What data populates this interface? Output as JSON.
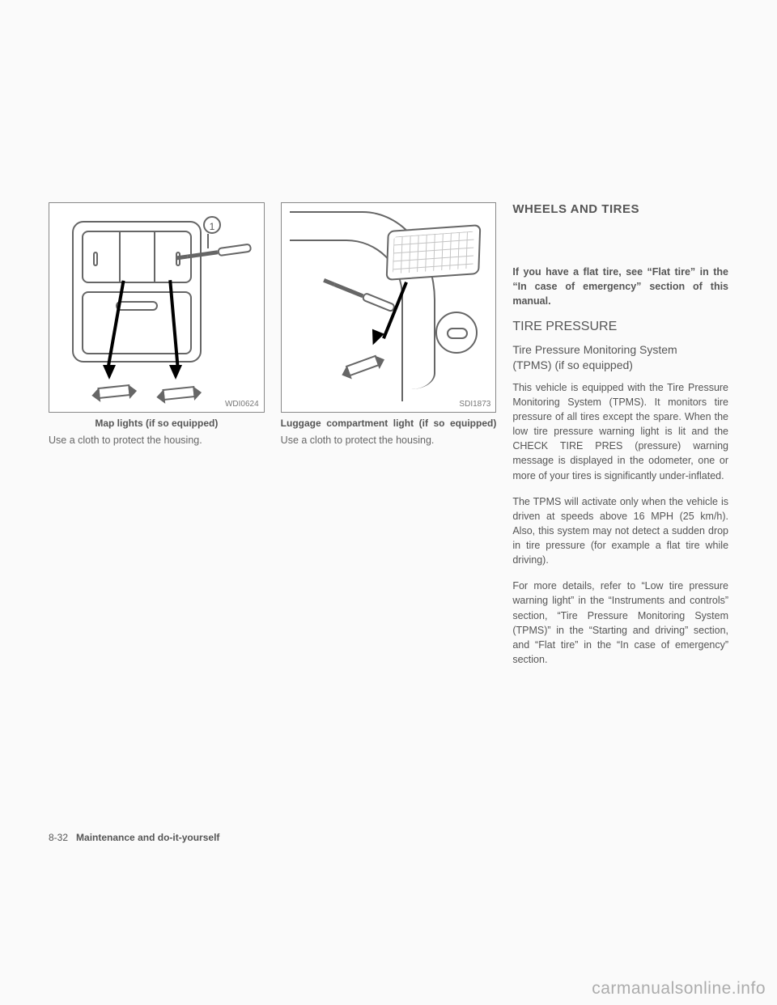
{
  "page": {
    "number": "8-32",
    "section": "Maintenance and do-it-yourself"
  },
  "watermark": "carmanualsonline.info",
  "col1": {
    "figure_id": "WDI0624",
    "caption": "Map lights (if so equipped)",
    "desc": "Use a cloth to protect the housing.",
    "callout": "1"
  },
  "col2": {
    "figure_id": "SDI1873",
    "caption": "Luggage compartment light (if so equipped)",
    "desc": "Use a cloth to protect the housing."
  },
  "col3": {
    "section_title": "WHEELS AND TIRES",
    "intro_bold": "If you have a flat tire, see “Flat tire” in the “In case of emergency” section of this manual.",
    "h2": "TIRE PRESSURE",
    "h3_line1": "Tire Pressure Monitoring System",
    "h3_line2": "(TPMS) (if so equipped)",
    "p1": "This vehicle is equipped with the Tire Pressure Monitoring System (TPMS). It monitors tire pressure of all tires except the spare. When the low tire pressure warning light is lit and the CHECK TIRE PRES (pressure) warning message is displayed in the odometer, one or more of your tires is significantly under-inflated.",
    "p2": "The TPMS will activate only when the vehicle is driven at speeds above 16 MPH (25 km/h). Also, this system may not detect a sudden drop in tire pressure (for example a flat tire while driving).",
    "p3": "For more details, refer to “Low tire pressure warning light” in the “Instruments and controls” section, “Tire Pressure Monitoring System (TPMS)” in the “Starting and driving” section, and “Flat tire” in the “In case of emergency” section."
  }
}
